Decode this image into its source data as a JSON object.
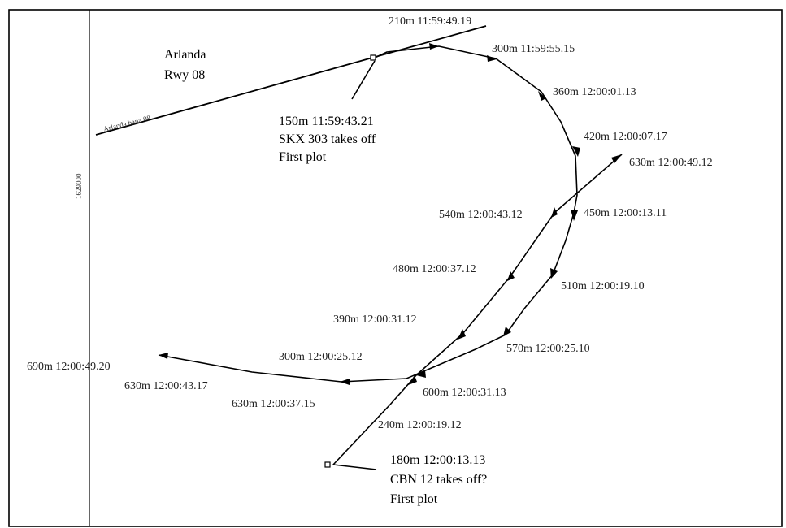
{
  "header_text": "",
  "axis_tick": "1629000",
  "runway": {
    "line_label": "Arlanda bana 08",
    "title_line1": "Arlanda",
    "title_line2": "Rwy 08"
  },
  "aircraft_1": {
    "first_plot_line1": "150m 11:59:43.21",
    "first_plot_line2": "SKX 303 takes off",
    "first_plot_line3": "First plot",
    "plots": [
      "210m 11:59:49.19",
      "300m 11:59:55.15",
      "360m 12:00:01.13",
      "420m 12:00:07.17",
      "450m 12:00:13.11",
      "510m 12:00:19.10",
      "570m 12:00:25.10",
      "600m 12:00:31.13",
      "630m 12:00:37.15",
      "630m 12:00:43.17",
      "690m 12:00:49.20"
    ]
  },
  "aircraft_2": {
    "first_plot_line1": "180m 12:00:13.13",
    "first_plot_line2": "CBN 12 takes off?",
    "first_plot_line3": "First plot",
    "plots": [
      "240m 12:00:19.12",
      "300m 12:00:25.12",
      "390m 12:00:31.12",
      "480m 12:00:37.12",
      "540m 12:00:43.12",
      "630m 12:00:49.12"
    ]
  }
}
